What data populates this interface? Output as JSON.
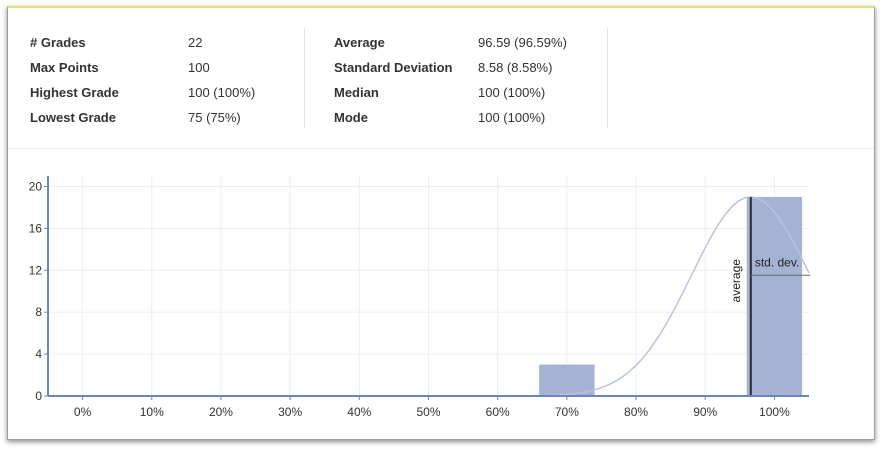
{
  "stats": {
    "left": [
      {
        "label": "# Grades",
        "value": "22"
      },
      {
        "label": "Max Points",
        "value": "100"
      },
      {
        "label": "Highest Grade",
        "value": "100 (100%)"
      },
      {
        "label": "Lowest Grade",
        "value": "75 (75%)"
      }
    ],
    "right": [
      {
        "label": "Average",
        "value": "96.59 (96.59%)"
      },
      {
        "label": "Standard Deviation",
        "value": "8.58 (8.58%)"
      },
      {
        "label": "Median",
        "value": "100 (100%)"
      },
      {
        "label": "Mode",
        "value": "100 (100%)"
      }
    ]
  },
  "chart_data": {
    "type": "bar",
    "x_ticks": [
      "0%",
      "10%",
      "20%",
      "30%",
      "40%",
      "50%",
      "60%",
      "70%",
      "80%",
      "90%",
      "100%"
    ],
    "y_ticks": [
      "0",
      "4",
      "8",
      "12",
      "16",
      "20"
    ],
    "xlim": [
      -5,
      105
    ],
    "ylim": [
      0,
      21
    ],
    "bars": [
      {
        "center": 70,
        "width": 8,
        "value": 3
      },
      {
        "center": 100,
        "width": 8,
        "value": 19
      }
    ],
    "average": 96.59,
    "std_dev": 8.58,
    "curve_peak": 19,
    "average_label": "average",
    "std_dev_label": "std. dev.",
    "colors": {
      "bar": "#a4b3d3",
      "axis": "#6b86b8",
      "curve": "#b9c4dc",
      "average_line": "#2c2c2c",
      "grid": "#eeeeee"
    }
  }
}
